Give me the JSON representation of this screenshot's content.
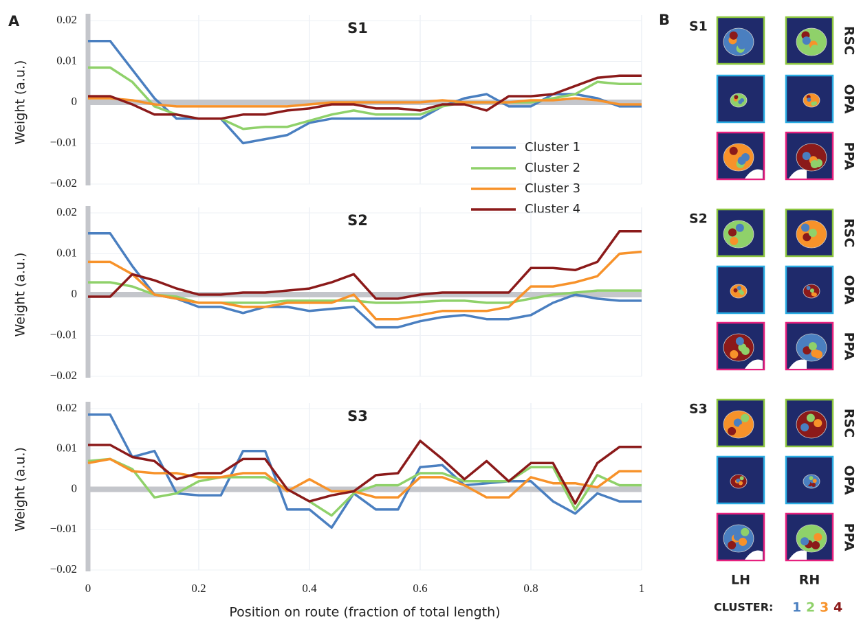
{
  "panel_a_label": "A",
  "chart_data": [
    {
      "type": "line",
      "title": "S1",
      "ylabel": "Weight (a.u.)",
      "legend": "lower right",
      "xlim": [
        0,
        1
      ],
      "xticks": [
        0,
        0.2,
        0.4,
        0.6,
        0.8,
        1
      ],
      "show_xtick_labels": false,
      "ylim": [
        -0.02,
        0.02
      ],
      "yticks": [
        {
          "value": -0.02,
          "label": "−0.02"
        },
        {
          "value": -0.01,
          "label": "−0.01"
        },
        0,
        0.01,
        0.02
      ],
      "grid": true,
      "x": [
        0,
        0.04,
        0.08,
        0.12,
        0.16,
        0.2,
        0.24,
        0.28,
        0.32,
        0.36,
        0.4,
        0.44,
        0.48,
        0.52,
        0.56,
        0.6,
        0.64,
        0.68,
        0.72,
        0.76,
        0.8,
        0.84,
        0.88,
        0.92,
        0.96,
        1
      ],
      "series": [
        {
          "name": "Cluster 1",
          "color": "#4a7fc0",
          "values": [
            0.015,
            0.015,
            0.008,
            0.001,
            -0.004,
            -0.004,
            -0.004,
            -0.01,
            -0.009,
            -0.008,
            -0.005,
            -0.004,
            -0.004,
            -0.004,
            -0.004,
            -0.004,
            -0.001,
            0.001,
            0.002,
            -0.001,
            -0.001,
            0.002,
            0.002,
            0.001,
            -0.001,
            -0.001
          ]
        },
        {
          "name": "Cluster 2",
          "color": "#8fd16a",
          "values": [
            0.0085,
            0.0085,
            0.005,
            -0.001,
            -0.003,
            -0.004,
            -0.004,
            -0.0065,
            -0.006,
            -0.006,
            -0.0045,
            -0.003,
            -0.002,
            -0.003,
            -0.003,
            -0.003,
            -0.001,
            0,
            0,
            0,
            0,
            0.001,
            0.002,
            0.005,
            0.0045,
            0.0045
          ]
        },
        {
          "name": "Cluster 3",
          "color": "#f7922a",
          "values": [
            0.001,
            0.001,
            0.0005,
            -0.0005,
            -0.001,
            -0.001,
            -0.001,
            -0.001,
            -0.001,
            -0.001,
            -0.0005,
            0,
            0,
            0,
            0,
            0,
            0.0005,
            0,
            0,
            0,
            0.0005,
            0.0005,
            0.001,
            0.0005,
            -0.0005,
            -0.0005
          ]
        },
        {
          "name": "Cluster 4",
          "color": "#8b1a1a",
          "values": [
            0.0015,
            0.0015,
            -0.0005,
            -0.003,
            -0.003,
            -0.004,
            -0.004,
            -0.003,
            -0.003,
            -0.002,
            -0.0015,
            -0.0005,
            -0.0005,
            -0.0015,
            -0.0015,
            -0.002,
            -0.0005,
            -0.0005,
            -0.002,
            0.0015,
            0.0015,
            0.002,
            0.004,
            0.006,
            0.0065,
            0.0065
          ]
        }
      ]
    },
    {
      "type": "line",
      "title": "S2",
      "ylabel": "Weight (a.u.)",
      "xlim": [
        0,
        1
      ],
      "xticks": [
        0,
        0.2,
        0.4,
        0.6,
        0.8,
        1
      ],
      "show_xtick_labels": false,
      "ylim": [
        -0.02,
        0.02
      ],
      "yticks": [
        {
          "value": -0.02,
          "label": "−0.02"
        },
        {
          "value": -0.01,
          "label": "−0.01"
        },
        0,
        0.01,
        0.02
      ],
      "grid": true,
      "x": [
        0,
        0.04,
        0.08,
        0.12,
        0.16,
        0.2,
        0.24,
        0.28,
        0.32,
        0.36,
        0.4,
        0.44,
        0.48,
        0.52,
        0.56,
        0.6,
        0.64,
        0.68,
        0.72,
        0.76,
        0.8,
        0.84,
        0.88,
        0.92,
        0.96,
        1
      ],
      "series": [
        {
          "color": "#4a7fc0",
          "values": [
            0.015,
            0.015,
            0.007,
            0,
            -0.001,
            -0.003,
            -0.003,
            -0.0045,
            -0.003,
            -0.003,
            -0.004,
            -0.0035,
            -0.003,
            -0.008,
            -0.008,
            -0.0065,
            -0.0055,
            -0.005,
            -0.006,
            -0.006,
            -0.005,
            -0.002,
            0,
            -0.001,
            -0.0015,
            -0.0015
          ]
        },
        {
          "color": "#8fd16a",
          "values": [
            0.003,
            0.003,
            0.002,
            0,
            -0.0005,
            -0.002,
            -0.002,
            -0.002,
            -0.002,
            -0.0015,
            -0.0015,
            -0.0015,
            -0.0015,
            -0.002,
            -0.002,
            -0.0018,
            -0.0015,
            -0.0015,
            -0.002,
            -0.002,
            -0.001,
            0,
            0.0005,
            0.001,
            0.001,
            0.001
          ]
        },
        {
          "color": "#f7922a",
          "values": [
            0.008,
            0.008,
            0.005,
            0,
            -0.001,
            -0.002,
            -0.002,
            -0.003,
            -0.003,
            -0.002,
            -0.002,
            -0.002,
            0,
            -0.006,
            -0.006,
            -0.005,
            -0.004,
            -0.004,
            -0.004,
            -0.003,
            0.002,
            0.002,
            0.003,
            0.0045,
            0.01,
            0.0105
          ]
        },
        {
          "color": "#8b1a1a",
          "values": [
            -0.0005,
            -0.0005,
            0.005,
            0.0035,
            0.0015,
            0,
            0,
            0.0005,
            0.0005,
            0.001,
            0.0015,
            0.003,
            0.005,
            -0.001,
            -0.001,
            0,
            0.0005,
            0.0005,
            0.0005,
            0.0005,
            0.0065,
            0.0065,
            0.006,
            0.008,
            0.0155,
            0.0155
          ]
        }
      ]
    },
    {
      "type": "line",
      "title": "S3",
      "ylabel": "Weight (a.u.)",
      "xlabel": "Position on route (fraction of total length)",
      "xlim": [
        0,
        1
      ],
      "xticks": [
        0,
        0.2,
        0.4,
        0.6,
        0.8,
        1
      ],
      "show_xtick_labels": true,
      "ylim": [
        -0.02,
        0.02
      ],
      "yticks": [
        {
          "value": -0.02,
          "label": "−0.02"
        },
        {
          "value": -0.01,
          "label": "−0.01"
        },
        0,
        0.01,
        0.02
      ],
      "grid": true,
      "x": [
        0,
        0.04,
        0.08,
        0.12,
        0.16,
        0.2,
        0.24,
        0.28,
        0.32,
        0.36,
        0.4,
        0.44,
        0.48,
        0.52,
        0.56,
        0.6,
        0.64,
        0.68,
        0.72,
        0.76,
        0.8,
        0.84,
        0.88,
        0.92,
        0.96,
        1
      ],
      "series": [
        {
          "color": "#4a7fc0",
          "values": [
            0.0185,
            0.0185,
            0.008,
            0.0095,
            -0.001,
            -0.0015,
            -0.0015,
            0.0095,
            0.0095,
            -0.005,
            -0.005,
            -0.0095,
            -0.001,
            -0.005,
            -0.005,
            0.0055,
            0.006,
            0.001,
            0.0015,
            0.002,
            0.002,
            -0.003,
            -0.006,
            -0.001,
            -0.003,
            -0.003
          ]
        },
        {
          "color": "#8fd16a",
          "values": [
            0.007,
            0.0075,
            0.005,
            -0.002,
            -0.001,
            0.002,
            0.003,
            0.003,
            0.003,
            0,
            -0.003,
            -0.0065,
            -0.001,
            0.001,
            0.001,
            0.004,
            0.004,
            0.002,
            0.002,
            0.002,
            0.0055,
            0.0055,
            -0.005,
            0.0035,
            0.001,
            0.001
          ]
        },
        {
          "color": "#f7922a",
          "values": [
            0.0065,
            0.0075,
            0.0045,
            0.004,
            0.004,
            0.003,
            0.003,
            0.004,
            0.004,
            -0.0005,
            0.0025,
            -0.0005,
            -0.0005,
            -0.002,
            -0.002,
            0.003,
            0.003,
            0.001,
            -0.002,
            -0.002,
            0.003,
            0.0015,
            0.0015,
            0.0005,
            0.0045,
            0.0045
          ]
        },
        {
          "color": "#8b1a1a",
          "values": [
            0.011,
            0.011,
            0.008,
            0.007,
            0.0025,
            0.004,
            0.004,
            0.0075,
            0.0075,
            0,
            -0.003,
            -0.0015,
            -0.0005,
            0.0035,
            0.004,
            0.012,
            0.0075,
            0.0025,
            0.007,
            0.002,
            0.0065,
            0.0065,
            -0.0035,
            0.0065,
            0.0105,
            0.0105
          ]
        }
      ]
    }
  ],
  "panel_b": {
    "label": "B",
    "subjects": [
      "S1",
      "S2",
      "S3"
    ],
    "regions": [
      "RSC",
      "OPA",
      "PPA"
    ],
    "hemispheres": [
      "LH",
      "RH"
    ],
    "legend_title": "CLUSTER:",
    "legend_items": [
      "1",
      "2",
      "3",
      "4"
    ]
  }
}
